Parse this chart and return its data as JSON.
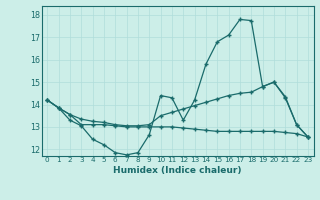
{
  "xlabel": "Humidex (Indice chaleur)",
  "bg_color": "#cceee8",
  "grid_color": "#b0ddda",
  "line_color": "#1a6b6b",
  "xlim": [
    -0.5,
    23.5
  ],
  "ylim": [
    11.7,
    18.4
  ],
  "yticks": [
    12,
    13,
    14,
    15,
    16,
    17,
    18
  ],
  "xticks": [
    0,
    1,
    2,
    3,
    4,
    5,
    6,
    7,
    8,
    9,
    10,
    11,
    12,
    13,
    14,
    15,
    16,
    17,
    18,
    19,
    20,
    21,
    22,
    23
  ],
  "line1": [
    14.2,
    13.85,
    13.3,
    13.05,
    12.45,
    12.2,
    11.85,
    11.75,
    11.85,
    12.65,
    14.4,
    14.3,
    13.3,
    14.2,
    15.8,
    16.8,
    17.1,
    17.8,
    17.75,
    14.8,
    15.0,
    14.3,
    13.1,
    12.55
  ],
  "line2": [
    14.2,
    13.85,
    13.55,
    13.35,
    13.25,
    13.2,
    13.1,
    13.05,
    13.05,
    13.1,
    13.5,
    13.65,
    13.8,
    13.95,
    14.1,
    14.25,
    14.4,
    14.5,
    14.55,
    14.8,
    15.0,
    14.35,
    13.1,
    12.55
  ],
  "line3": [
    14.2,
    13.85,
    13.55,
    13.1,
    13.1,
    13.1,
    13.05,
    13.0,
    13.0,
    13.0,
    13.0,
    13.0,
    12.95,
    12.9,
    12.85,
    12.8,
    12.8,
    12.8,
    12.8,
    12.8,
    12.8,
    12.75,
    12.7,
    12.55
  ]
}
